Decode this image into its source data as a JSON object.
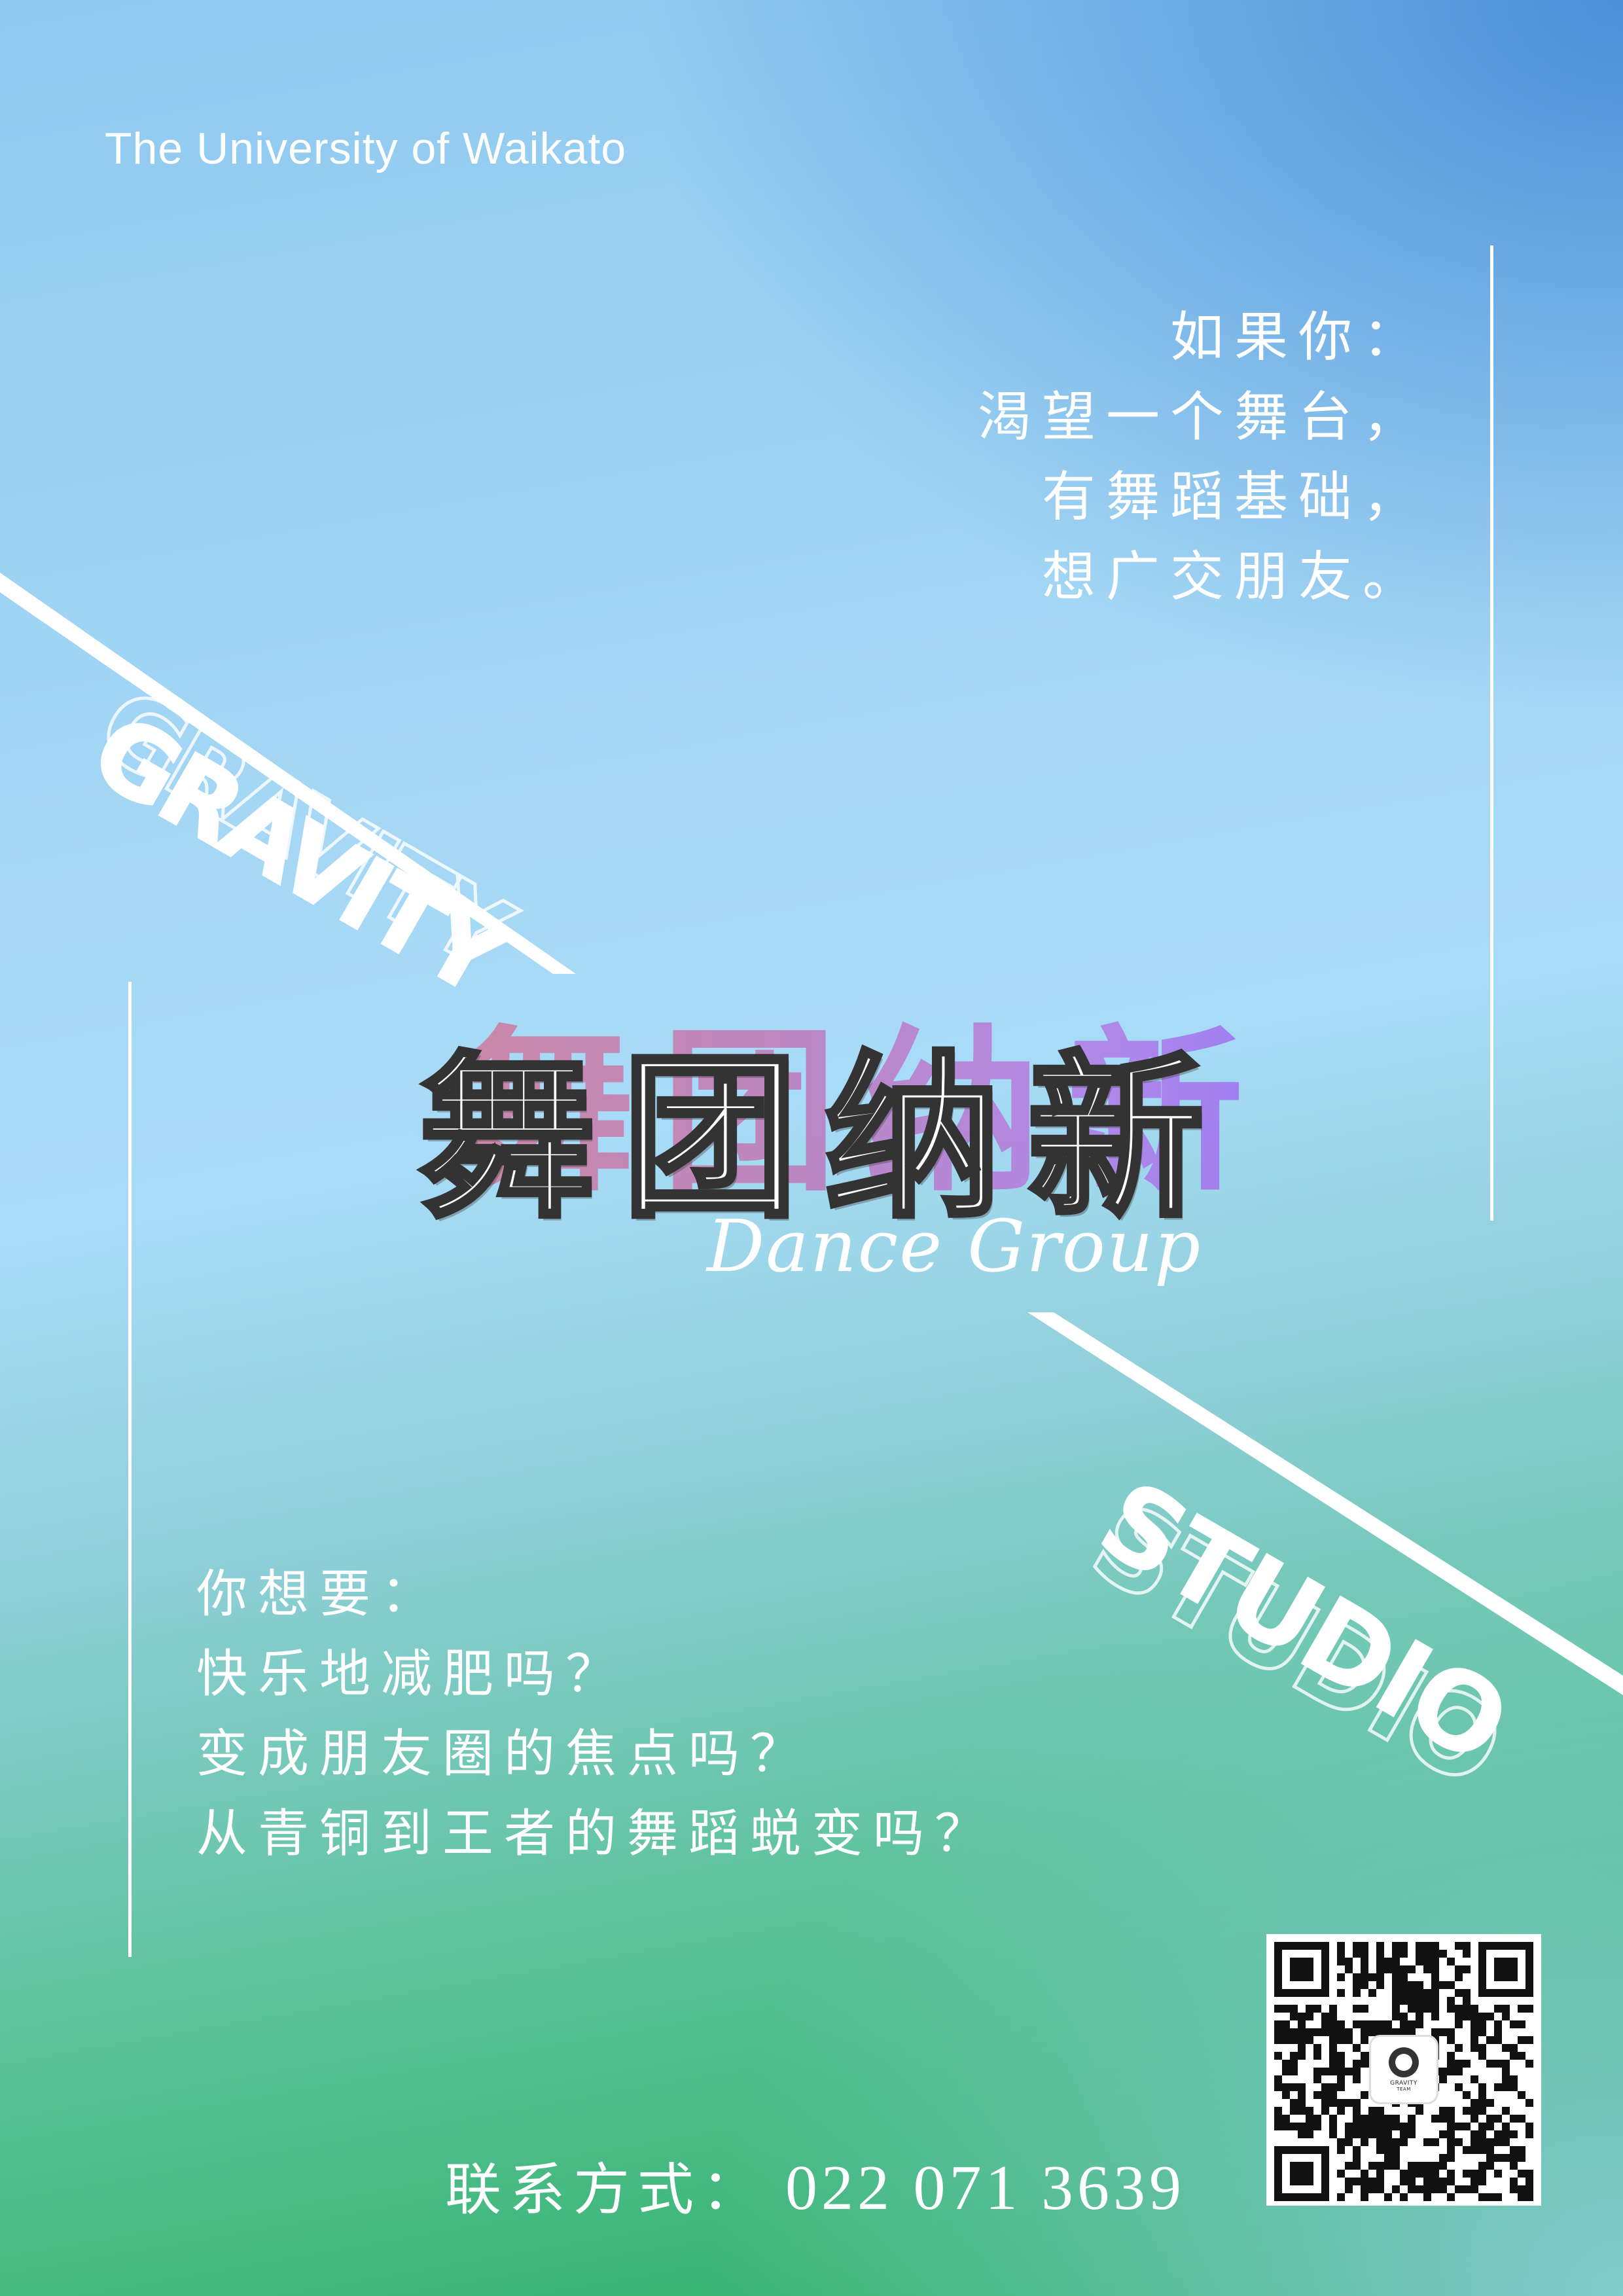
{
  "header": {
    "university": "The University of Waikato"
  },
  "intro_block": {
    "lines": [
      "如果你：",
      "渴望一个舞台，",
      "有舞蹈基础，",
      "想广交朋友。"
    ]
  },
  "headline": {
    "title": "舞团纳新",
    "subtitle": "Dance Group"
  },
  "wordmarks": {
    "top": "GRAVITY",
    "bottom": "STUDIO"
  },
  "question_block": {
    "lines": [
      "你想要：",
      "快乐地减肥吗？",
      "变成朋友圈的焦点吗？",
      "从青铜到王者的舞蹈蜕变吗？"
    ]
  },
  "contact": {
    "label": "联系方式：",
    "phone": "022 071 3639"
  },
  "qr": {
    "logo_text": "GRAVITY",
    "logo_subtext": "TEAM"
  },
  "colors": {
    "top_blue": "#4a8fd6",
    "mid_sky": "#a8dbf7",
    "bottom_green": "#2bb063",
    "text": "#ffffff",
    "outline": "#333333"
  }
}
